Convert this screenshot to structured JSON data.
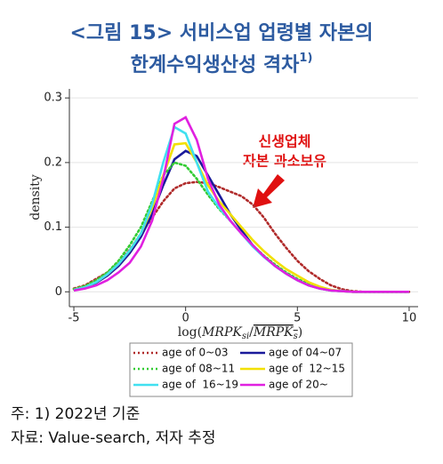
{
  "chart_data": {
    "type": "line",
    "title_lines": [
      "<그림 15> 서비스업 업령별 자본의",
      "한계수익생산성 격차"
    ],
    "title_superscript": "1)",
    "y_label": "density",
    "x_label_parts": [
      "log(",
      "MRPK",
      "si",
      "/",
      "MRPK",
      "s",
      ")"
    ],
    "annotation_lines": [
      "신생업체",
      "자본 과소보유"
    ],
    "x": [
      -5,
      -4.5,
      -4,
      -3.5,
      -3,
      -2.5,
      -2,
      -1.5,
      -1,
      -0.5,
      0,
      0.5,
      1,
      1.5,
      2,
      2.5,
      3,
      3.5,
      4,
      4.5,
      5,
      5.5,
      6,
      6.5,
      7,
      7.5,
      8,
      8.5,
      9,
      9.5,
      10
    ],
    "series": [
      {
        "name": "age of 0~03",
        "color": "#b02a2a",
        "dash": "dotted",
        "values": [
          0.005,
          0.01,
          0.02,
          0.03,
          0.045,
          0.065,
          0.09,
          0.115,
          0.14,
          0.16,
          0.168,
          0.17,
          0.168,
          0.162,
          0.155,
          0.148,
          0.135,
          0.115,
          0.09,
          0.068,
          0.048,
          0.032,
          0.02,
          0.01,
          0.004,
          0.001,
          0,
          0,
          0,
          0,
          0
        ]
      },
      {
        "name": "age of 04~07",
        "color": "#1a1a9a",
        "dash": "solid",
        "values": [
          0.003,
          0.007,
          0.014,
          0.025,
          0.04,
          0.06,
          0.085,
          0.12,
          0.165,
          0.205,
          0.218,
          0.21,
          0.18,
          0.15,
          0.12,
          0.095,
          0.072,
          0.055,
          0.04,
          0.028,
          0.018,
          0.01,
          0.005,
          0.002,
          0.001,
          0,
          0,
          0,
          0,
          0,
          0
        ]
      },
      {
        "name": "age of 08~11",
        "color": "#33cc33",
        "dash": "dotted",
        "values": [
          0.004,
          0.009,
          0.018,
          0.03,
          0.048,
          0.072,
          0.1,
          0.14,
          0.18,
          0.2,
          0.195,
          0.175,
          0.15,
          0.128,
          0.11,
          0.09,
          0.072,
          0.056,
          0.042,
          0.03,
          0.02,
          0.012,
          0.006,
          0.003,
          0.001,
          0,
          0,
          0,
          0,
          0,
          0
        ]
      },
      {
        "name": "age of  12~15",
        "color": "#f2e000",
        "dash": "solid",
        "values": [
          0.003,
          0.007,
          0.015,
          0.027,
          0.043,
          0.064,
          0.09,
          0.13,
          0.18,
          0.228,
          0.23,
          0.2,
          0.165,
          0.14,
          0.12,
          0.1,
          0.08,
          0.063,
          0.048,
          0.035,
          0.025,
          0.015,
          0.008,
          0.003,
          0.001,
          0,
          0,
          0,
          0,
          0,
          0
        ]
      },
      {
        "name": "age of  16~19",
        "color": "#40e0f0",
        "dash": "solid",
        "values": [
          0.003,
          0.007,
          0.015,
          0.027,
          0.043,
          0.064,
          0.09,
          0.135,
          0.2,
          0.255,
          0.245,
          0.2,
          0.155,
          0.13,
          0.11,
          0.09,
          0.07,
          0.054,
          0.04,
          0.028,
          0.018,
          0.01,
          0.005,
          0.002,
          0.001,
          0,
          0,
          0,
          0,
          0,
          0
        ]
      },
      {
        "name": "age of 20~",
        "color": "#e020e0",
        "dash": "solid",
        "values": [
          0.002,
          0.005,
          0.01,
          0.018,
          0.03,
          0.045,
          0.07,
          0.11,
          0.175,
          0.26,
          0.27,
          0.235,
          0.175,
          0.135,
          0.11,
          0.09,
          0.072,
          0.055,
          0.04,
          0.028,
          0.018,
          0.01,
          0.005,
          0.002,
          0.001,
          0,
          0,
          0,
          0,
          0,
          0
        ]
      }
    ],
    "xlim": [
      -5.2,
      10.4
    ],
    "xticks": [
      -5,
      0,
      5,
      10
    ],
    "ylim": [
      -0.023,
      0.314
    ],
    "yticks": [
      0,
      0.1,
      0.2,
      0.3
    ],
    "grid": true,
    "notes": [
      "주: 1) 2022년 기준",
      "자료: Value-search, 저자 추정"
    ]
  }
}
